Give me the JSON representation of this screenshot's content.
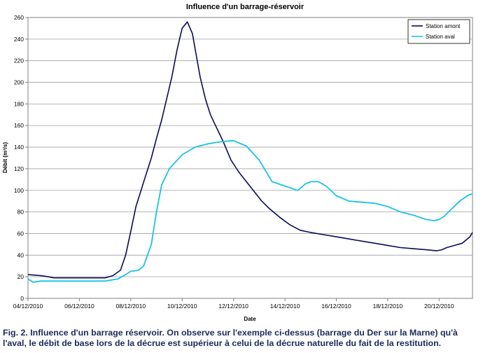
{
  "chart_data": {
    "type": "line",
    "title": "Influence d'un barrage-réservoir",
    "xlabel": "Date",
    "ylabel": "Débit (m³/s)",
    "ylim": [
      0,
      260
    ],
    "y_ticks": [
      0,
      20,
      40,
      60,
      80,
      100,
      120,
      140,
      160,
      180,
      200,
      220,
      240,
      260
    ],
    "x_ticks": [
      "04/12/2010",
      "06/12/2010",
      "08/12/2010",
      "10/12/2010",
      "12/12/2010",
      "14/12/2010",
      "16/12/2010",
      "18/12/2010",
      "20/12/2010"
    ],
    "x_range_days": [
      0,
      17.3
    ],
    "grid": "horizontal",
    "legend_position": "top-right",
    "series": [
      {
        "name": "Station amont",
        "color": "#0a0a5a",
        "x_days": [
          0,
          0.5,
          0.8,
          1.0,
          1.5,
          2.0,
          2.5,
          3.0,
          3.3,
          3.6,
          3.8,
          4.0,
          4.2,
          4.4,
          4.6,
          4.8,
          5.0,
          5.2,
          5.4,
          5.6,
          5.8,
          6.0,
          6.2,
          6.4,
          6.55,
          6.7,
          6.9,
          7.1,
          7.3,
          7.6,
          7.9,
          8.2,
          8.5,
          8.8,
          9.1,
          9.4,
          9.8,
          10.2,
          10.6,
          11.0,
          11.5,
          12.0,
          12.5,
          13.0,
          13.5,
          14.0,
          14.5,
          15.0,
          15.5,
          15.9,
          16.1,
          16.3,
          16.6,
          16.9,
          17.2,
          17.3
        ],
        "values": [
          22,
          21,
          20,
          19,
          19,
          19,
          19,
          19,
          21,
          26,
          40,
          62,
          85,
          100,
          115,
          130,
          148,
          165,
          185,
          205,
          230,
          250,
          256,
          245,
          225,
          205,
          185,
          170,
          160,
          145,
          128,
          117,
          108,
          99,
          90,
          83,
          75,
          68,
          63,
          61,
          59,
          57,
          55,
          53,
          51,
          49,
          47,
          46,
          45,
          44,
          45,
          47,
          49,
          51,
          57,
          61
        ]
      },
      {
        "name": "Station aval",
        "color": "#18c4e4",
        "x_days": [
          0,
          0.2,
          0.5,
          1.0,
          1.5,
          2.0,
          2.5,
          3.0,
          3.5,
          3.8,
          4.0,
          4.3,
          4.5,
          4.8,
          5.0,
          5.2,
          5.5,
          6.0,
          6.5,
          7.0,
          7.5,
          8.0,
          8.5,
          9.0,
          9.5,
          10.0,
          10.5,
          10.8,
          11.0,
          11.3,
          11.6,
          12.0,
          12.5,
          13.0,
          13.5,
          14.0,
          14.5,
          15.0,
          15.5,
          15.8,
          16.0,
          16.2,
          16.5,
          16.8,
          17.1,
          17.3
        ],
        "values": [
          18,
          15,
          16,
          16,
          16,
          16,
          16,
          16,
          18,
          22,
          25,
          26,
          30,
          50,
          80,
          105,
          120,
          133,
          140,
          143,
          145,
          146,
          141,
          128,
          108,
          104,
          100,
          106,
          108,
          108,
          104,
          95,
          90,
          89,
          88,
          85,
          80,
          77,
          73,
          72,
          73,
          76,
          83,
          90,
          95,
          97
        ]
      }
    ]
  },
  "caption": {
    "line1": "Fig. 2. Influence d'un barrage réservoir. On observe sur l'exemple ci-dessus (barrage du Der sur la Marne) qu'à",
    "line2": "l'aval, le débit de base lors de la décrue est supérieur à celui de la décrue naturelle du fait de la restitution."
  }
}
